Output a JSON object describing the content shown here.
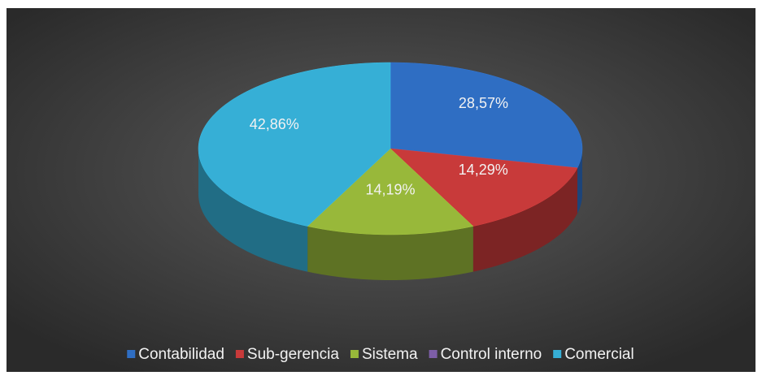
{
  "chart_data": {
    "type": "pie3d",
    "categories": [
      "Contabilidad",
      "Sub-gerencia",
      "Sistema",
      "Control interno",
      "Comercial"
    ],
    "values": [
      28.57,
      14.29,
      14.19,
      0,
      42.86
    ],
    "value_labels": [
      "28,57%",
      "14,29%",
      "14,19%",
      null,
      "42,86%"
    ],
    "colors": [
      "#2f6ec3",
      "#c83a3a",
      "#98b83a",
      "#7d5ea8",
      "#36afd6"
    ],
    "legend": "bottom"
  }
}
